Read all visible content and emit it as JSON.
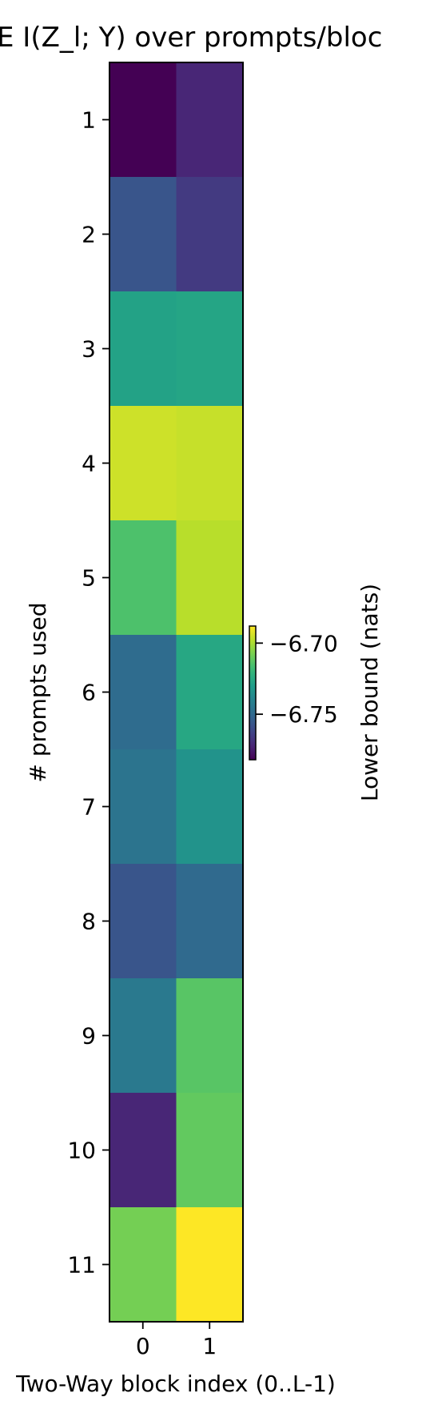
{
  "chart_data": {
    "type": "heatmap",
    "title": "E  I(Z_l; Y) over prompts/bloc",
    "xlabel": "Two-Way block index (0..L-1)",
    "ylabel": "# prompts used",
    "x_categories": [
      "0",
      "1"
    ],
    "y_categories": [
      "1",
      "2",
      "3",
      "4",
      "5",
      "6",
      "7",
      "8",
      "9",
      "10",
      "11"
    ],
    "values": [
      [
        -6.782,
        -6.772
      ],
      [
        -6.757,
        -6.766
      ],
      [
        -6.728,
        -6.727
      ],
      [
        -6.695,
        -6.696
      ],
      [
        -6.715,
        -6.698
      ],
      [
        -6.749,
        -6.726
      ],
      [
        -6.746,
        -6.734
      ],
      [
        -6.757,
        -6.75
      ],
      [
        -6.744,
        -6.713
      ],
      [
        -6.772,
        -6.711
      ],
      [
        -6.708,
        -6.688
      ]
    ],
    "colorbar": {
      "label": "Lower bound (nats)",
      "range": [
        -6.782,
        -6.688
      ],
      "ticks": [
        -6.75,
        -6.7
      ],
      "tick_labels": [
        "−6.75",
        "−6.70"
      ],
      "colormap": "viridis"
    }
  }
}
